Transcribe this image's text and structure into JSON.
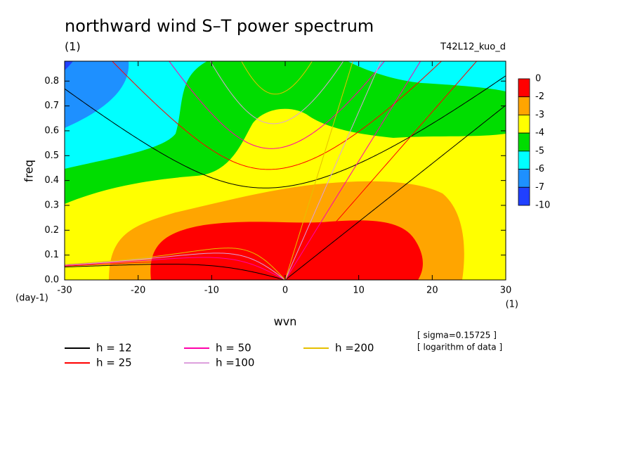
{
  "chart_data": {
    "type": "contour",
    "title": "northward wind S–T power spectrum",
    "subtitle": "(1)",
    "label_right": "T42L12_kuo_d",
    "xlabel": "wvn",
    "ylabel": "freq",
    "x_unit": "(1)",
    "y_unit": "(day-1)",
    "xlim": [
      -30,
      30
    ],
    "xticks": [
      -30,
      -20,
      -10,
      0,
      10,
      20,
      30
    ],
    "ylim": [
      0,
      0.88
    ],
    "yticks": [
      {
        "value": 0,
        "label": "0.0"
      },
      0.1,
      0.2,
      0.3,
      0.4,
      0.5,
      0.6,
      0.7,
      0.8
    ],
    "levels": [
      0,
      -2,
      -3,
      -4,
      -5,
      -6,
      -7,
      -10
    ],
    "level_colors": [
      "#ff0000",
      "#ffa500",
      "#ffff00",
      "#00dd00",
      "#00ffff",
      "#1e90ff",
      "#2040ff"
    ],
    "series": [
      {
        "name": "h = 12",
        "h": 12,
        "color": "#000000"
      },
      {
        "name": "h = 25",
        "h": 25,
        "color": "#ff0000"
      },
      {
        "name": "h = 50",
        "h": 50,
        "color": "#ff00aa"
      },
      {
        "name": "h =100",
        "h": 100,
        "color": "#dda0dd"
      },
      {
        "name": "h =200",
        "h": 200,
        "color": "#e6c000"
      }
    ],
    "notes": [
      "[ sigma=0.15725 ]",
      "[ logarithm of data ]"
    ]
  }
}
